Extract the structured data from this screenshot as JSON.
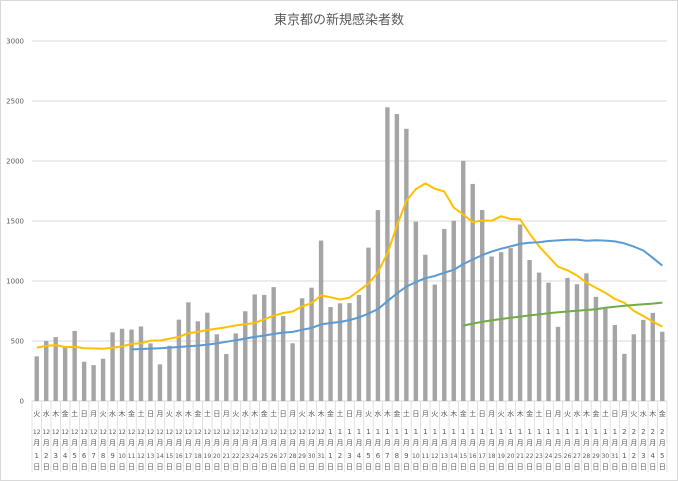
{
  "chart_data": {
    "type": "bar",
    "title": "東京都の新規感染者数",
    "xlabel": "",
    "ylabel": "",
    "ylim": [
      0,
      3000
    ],
    "yticks": [
      0,
      500,
      1000,
      1500,
      2000,
      2500,
      3000
    ],
    "grid": true,
    "legend": "none",
    "categories": [
      {
        "month": "12",
        "day": "1",
        "weekday": "火"
      },
      {
        "month": "12",
        "day": "2",
        "weekday": "水"
      },
      {
        "month": "12",
        "day": "3",
        "weekday": "木"
      },
      {
        "month": "12",
        "day": "4",
        "weekday": "金"
      },
      {
        "month": "12",
        "day": "5",
        "weekday": "土"
      },
      {
        "month": "12",
        "day": "6",
        "weekday": "日"
      },
      {
        "month": "12",
        "day": "7",
        "weekday": "月"
      },
      {
        "month": "12",
        "day": "8",
        "weekday": "火"
      },
      {
        "month": "12",
        "day": "9",
        "weekday": "水"
      },
      {
        "month": "12",
        "day": "10",
        "weekday": "木"
      },
      {
        "month": "12",
        "day": "11",
        "weekday": "金"
      },
      {
        "month": "12",
        "day": "12",
        "weekday": "土"
      },
      {
        "month": "12",
        "day": "13",
        "weekday": "日"
      },
      {
        "month": "12",
        "day": "14",
        "weekday": "月"
      },
      {
        "month": "12",
        "day": "15",
        "weekday": "火"
      },
      {
        "month": "12",
        "day": "16",
        "weekday": "水"
      },
      {
        "month": "12",
        "day": "17",
        "weekday": "木"
      },
      {
        "month": "12",
        "day": "18",
        "weekday": "金"
      },
      {
        "month": "12",
        "day": "19",
        "weekday": "土"
      },
      {
        "month": "12",
        "day": "20",
        "weekday": "日"
      },
      {
        "month": "12",
        "day": "21",
        "weekday": "月"
      },
      {
        "month": "12",
        "day": "22",
        "weekday": "火"
      },
      {
        "month": "12",
        "day": "23",
        "weekday": "水"
      },
      {
        "month": "12",
        "day": "24",
        "weekday": "木"
      },
      {
        "month": "12",
        "day": "25",
        "weekday": "金"
      },
      {
        "month": "12",
        "day": "26",
        "weekday": "土"
      },
      {
        "month": "12",
        "day": "27",
        "weekday": "日"
      },
      {
        "month": "12",
        "day": "28",
        "weekday": "月"
      },
      {
        "month": "12",
        "day": "29",
        "weekday": "火"
      },
      {
        "month": "12",
        "day": "30",
        "weekday": "水"
      },
      {
        "month": "12",
        "day": "31",
        "weekday": "木"
      },
      {
        "month": "1",
        "day": "1",
        "weekday": "金"
      },
      {
        "month": "1",
        "day": "2",
        "weekday": "土"
      },
      {
        "month": "1",
        "day": "3",
        "weekday": "日"
      },
      {
        "month": "1",
        "day": "4",
        "weekday": "月"
      },
      {
        "month": "1",
        "day": "5",
        "weekday": "火"
      },
      {
        "month": "1",
        "day": "6",
        "weekday": "水"
      },
      {
        "month": "1",
        "day": "7",
        "weekday": "木"
      },
      {
        "month": "1",
        "day": "8",
        "weekday": "金"
      },
      {
        "month": "1",
        "day": "9",
        "weekday": "土"
      },
      {
        "month": "1",
        "day": "10",
        "weekday": "日"
      },
      {
        "month": "1",
        "day": "11",
        "weekday": "月"
      },
      {
        "month": "1",
        "day": "12",
        "weekday": "火"
      },
      {
        "month": "1",
        "day": "13",
        "weekday": "水"
      },
      {
        "month": "1",
        "day": "14",
        "weekday": "木"
      },
      {
        "month": "1",
        "day": "15",
        "weekday": "金"
      },
      {
        "month": "1",
        "day": "16",
        "weekday": "土"
      },
      {
        "month": "1",
        "day": "17",
        "weekday": "日"
      },
      {
        "month": "1",
        "day": "18",
        "weekday": "月"
      },
      {
        "month": "1",
        "day": "19",
        "weekday": "火"
      },
      {
        "month": "1",
        "day": "20",
        "weekday": "水"
      },
      {
        "month": "1",
        "day": "21",
        "weekday": "木"
      },
      {
        "month": "1",
        "day": "22",
        "weekday": "金"
      },
      {
        "month": "1",
        "day": "23",
        "weekday": "土"
      },
      {
        "month": "1",
        "day": "24",
        "weekday": "日"
      },
      {
        "month": "1",
        "day": "25",
        "weekday": "月"
      },
      {
        "month": "1",
        "day": "26",
        "weekday": "火"
      },
      {
        "month": "1",
        "day": "27",
        "weekday": "水"
      },
      {
        "month": "1",
        "day": "28",
        "weekday": "木"
      },
      {
        "month": "1",
        "day": "29",
        "weekday": "金"
      },
      {
        "month": "1",
        "day": "30",
        "weekday": "土"
      },
      {
        "month": "1",
        "day": "31",
        "weekday": "日"
      },
      {
        "month": "2",
        "day": "1",
        "weekday": "月"
      },
      {
        "month": "2",
        "day": "2",
        "weekday": "火"
      },
      {
        "month": "2",
        "day": "3",
        "weekday": "水"
      },
      {
        "month": "2",
        "day": "4",
        "weekday": "木"
      },
      {
        "month": "2",
        "day": "5",
        "weekday": "金"
      }
    ],
    "month_suffix": "月",
    "day_suffix": "日",
    "bars": {
      "color": "#a5a5a5",
      "values": [
        372,
        500,
        533,
        449,
        584,
        327,
        299,
        352,
        572,
        602,
        595,
        621,
        480,
        305,
        460,
        678,
        822,
        664,
        736,
        556,
        392,
        563,
        748,
        888,
        884,
        949,
        708,
        481,
        856,
        944,
        1337,
        783,
        814,
        816,
        884,
        1278,
        1591,
        2447,
        2392,
        2268,
        1494,
        1219,
        970,
        1433,
        1502,
        2001,
        1809,
        1592,
        1204,
        1240,
        1274,
        1471,
        1175,
        1070,
        986,
        618,
        1026,
        973,
        1064,
        868,
        769,
        633,
        393,
        556,
        676,
        734,
        577
      ]
    },
    "lines": [
      {
        "color": "#ffc000",
        "values": [
          445,
          459,
          466,
          449,
          452,
          439,
          438,
          435,
          445,
          455,
          476,
          481,
          503,
          504,
          519,
          534,
          566,
          576,
          592,
          603,
          615,
          630,
          640,
          650,
          681,
          711,
          733,
          746,
          788,
          816,
          880,
          865,
          846,
          862,
          919,
          979,
          1072,
          1230,
          1460,
          1668,
          1765,
          1813,
          1769,
          1746,
          1611,
          1555,
          1490,
          1504,
          1502,
          1540,
          1517,
          1513,
          1395,
          1289,
          1203,
          1119,
          1089,
          1046,
          987,
          944,
          901,
          850,
          818,
          751,
          708,
          661,
          620
        ]
      },
      {
        "color": "#5b9bd5",
        "values": [
          null,
          null,
          null,
          null,
          null,
          null,
          null,
          null,
          null,
          null,
          430,
          433,
          437,
          440,
          445,
          450,
          456,
          462,
          470,
          480,
          493,
          507,
          520,
          534,
          545,
          559,
          570,
          576,
          593,
          609,
          638,
          650,
          658,
          675,
          696,
          729,
          766,
          832,
          896,
          954,
          991,
          1023,
          1042,
          1069,
          1093,
          1141,
          1179,
          1216,
          1245,
          1269,
          1288,
          1309,
          1319,
          1323,
          1333,
          1338,
          1344,
          1345,
          1336,
          1339,
          1337,
          1330,
          1313,
          1287,
          1254,
          1193,
          1128
        ]
      },
      {
        "color": "#70ad47",
        "values": [
          null,
          null,
          null,
          null,
          null,
          null,
          null,
          null,
          null,
          null,
          null,
          null,
          null,
          null,
          null,
          null,
          null,
          null,
          null,
          null,
          null,
          null,
          null,
          null,
          null,
          null,
          null,
          null,
          null,
          null,
          null,
          null,
          null,
          null,
          null,
          null,
          null,
          null,
          null,
          null,
          null,
          null,
          null,
          null,
          null,
          628,
          645,
          660,
          672,
          683,
          693,
          703,
          713,
          722,
          731,
          740,
          746,
          752,
          758,
          765,
          777,
          786,
          793,
          800,
          806,
          812,
          820
        ]
      }
    ]
  }
}
